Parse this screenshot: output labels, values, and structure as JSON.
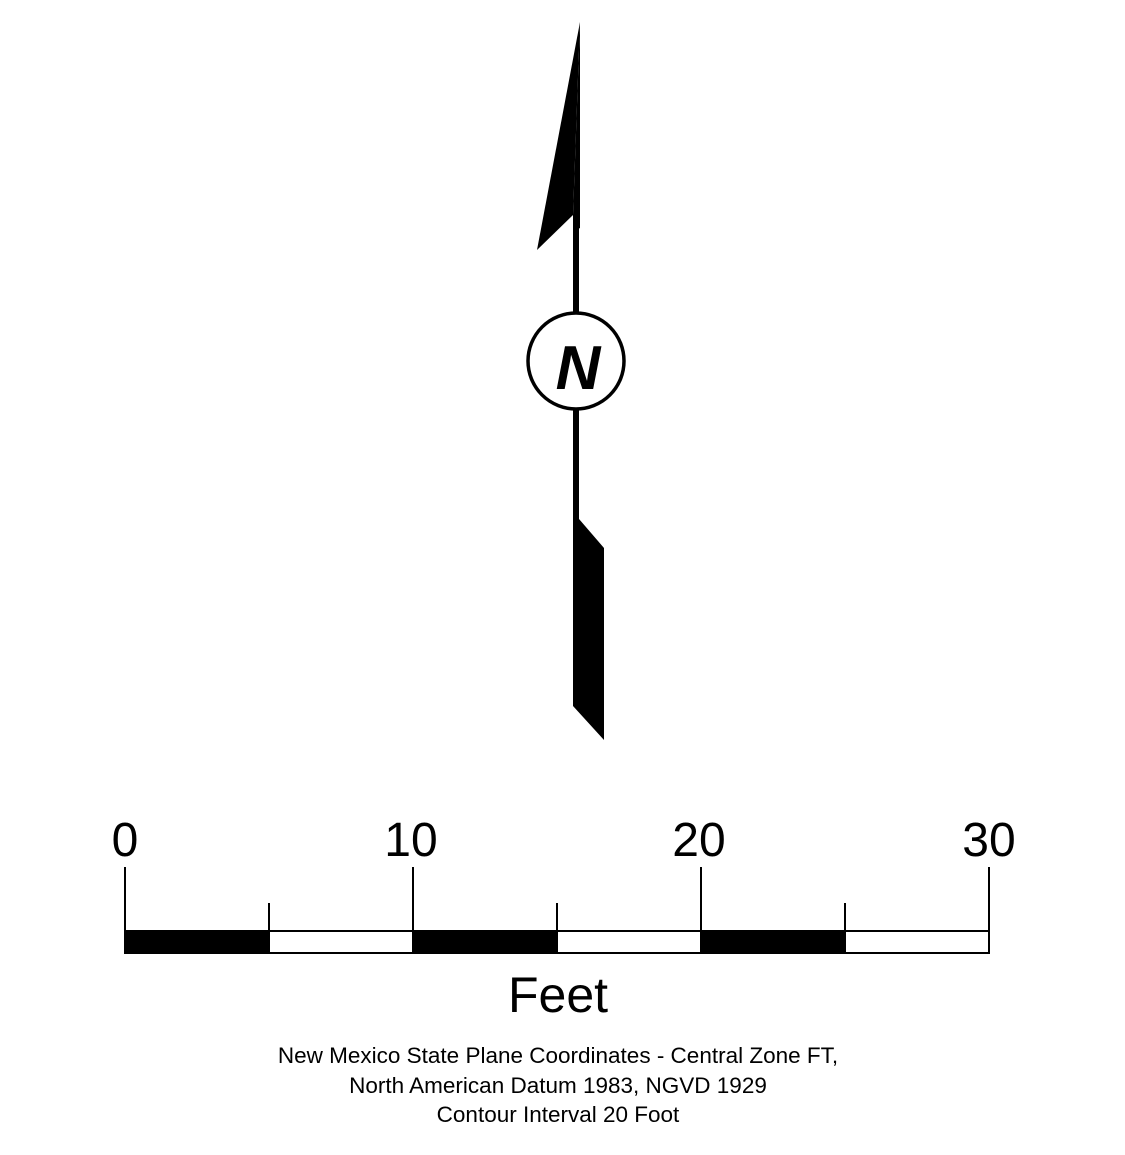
{
  "north_arrow": {
    "letter": "N"
  },
  "scale_bar": {
    "unit": "Feet",
    "labels": [
      "0",
      "10",
      "20",
      "30"
    ],
    "max": 30,
    "segment_size": 5,
    "colors": {
      "filled": "#000000",
      "empty": "#ffffff"
    }
  },
  "notes": [
    "New Mexico State Plane Coordinates - Central Zone FT,",
    "North American Datum 1983, NGVD 1929",
    "Contour Interval 20 Foot"
  ]
}
